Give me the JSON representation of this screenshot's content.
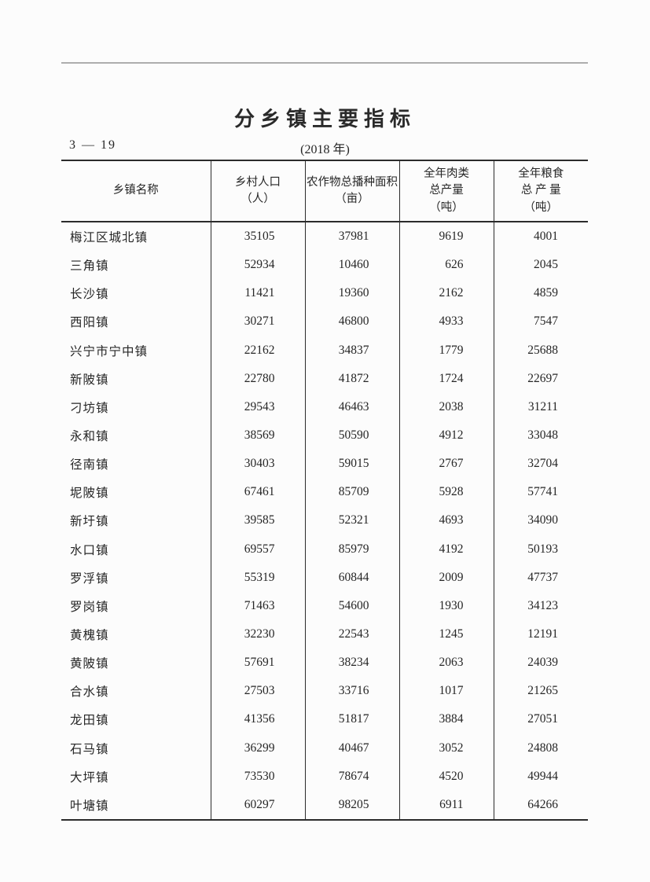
{
  "page": {
    "title": "分乡镇主要指标",
    "table_code": "3 — 19",
    "year_label": "(2018 年)"
  },
  "table": {
    "columns": [
      {
        "label_lines": [
          "乡镇名称"
        ]
      },
      {
        "label_lines": [
          "乡村人口",
          "（人）"
        ]
      },
      {
        "label_lines": [
          "农作物总播种面积",
          "（亩）"
        ]
      },
      {
        "label_lines": [
          "全年肉类",
          "总产量",
          "（吨）"
        ]
      },
      {
        "label_lines": [
          "全年粮食",
          "总 产 量",
          "（吨）"
        ]
      }
    ],
    "rows": [
      {
        "name": "梅江区城北镇",
        "values": [
          35105,
          37981,
          9619,
          4001
        ]
      },
      {
        "name": "三角镇",
        "values": [
          52934,
          10460,
          626,
          2045
        ]
      },
      {
        "name": "长沙镇",
        "values": [
          11421,
          19360,
          2162,
          4859
        ]
      },
      {
        "name": "西阳镇",
        "values": [
          30271,
          46800,
          4933,
          7547
        ]
      },
      {
        "name": "兴宁市宁中镇",
        "values": [
          22162,
          34837,
          1779,
          25688
        ]
      },
      {
        "name": "新陂镇",
        "values": [
          22780,
          41872,
          1724,
          22697
        ]
      },
      {
        "name": "刁坊镇",
        "values": [
          29543,
          46463,
          2038,
          31211
        ]
      },
      {
        "name": "永和镇",
        "values": [
          38569,
          50590,
          4912,
          33048
        ]
      },
      {
        "name": "径南镇",
        "values": [
          30403,
          59015,
          2767,
          32704
        ]
      },
      {
        "name": "坭陂镇",
        "values": [
          67461,
          85709,
          5928,
          57741
        ]
      },
      {
        "name": "新圩镇",
        "values": [
          39585,
          52321,
          4693,
          34090
        ]
      },
      {
        "name": "水口镇",
        "values": [
          69557,
          85979,
          4192,
          50193
        ]
      },
      {
        "name": "罗浮镇",
        "values": [
          55319,
          60844,
          2009,
          47737
        ]
      },
      {
        "name": "罗岗镇",
        "values": [
          71463,
          54600,
          1930,
          34123
        ]
      },
      {
        "name": "黄槐镇",
        "values": [
          32230,
          22543,
          1245,
          12191
        ]
      },
      {
        "name": "黄陂镇",
        "values": [
          57691,
          38234,
          2063,
          24039
        ]
      },
      {
        "name": "合水镇",
        "values": [
          27503,
          33716,
          1017,
          21265
        ]
      },
      {
        "name": "龙田镇",
        "values": [
          41356,
          51817,
          3884,
          27051
        ]
      },
      {
        "name": "石马镇",
        "values": [
          36299,
          40467,
          3052,
          24808
        ]
      },
      {
        "name": "大坪镇",
        "values": [
          73530,
          78674,
          4520,
          49944
        ]
      },
      {
        "name": "叶塘镇",
        "values": [
          60297,
          98205,
          6911,
          64266
        ]
      }
    ]
  }
}
